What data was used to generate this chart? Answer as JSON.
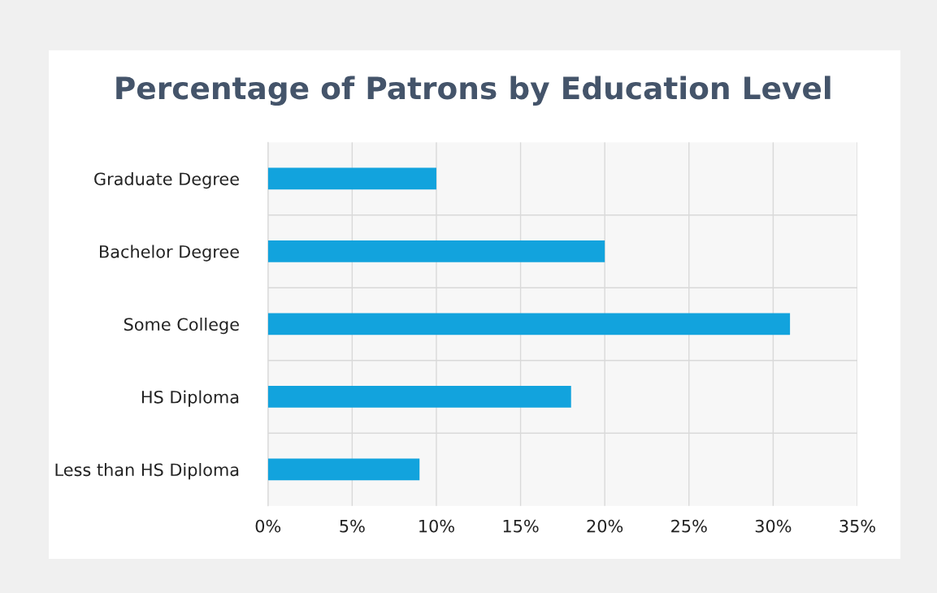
{
  "chart_data": {
    "type": "bar",
    "orientation": "horizontal",
    "title": "Percentage of Patrons by Education Level",
    "categories": [
      "Graduate Degree",
      "Bachelor Degree",
      "Some College",
      "HS Diploma",
      "Less than HS Diploma"
    ],
    "values": [
      10,
      20,
      31,
      18,
      9
    ],
    "color": "#12a3dd",
    "xlim": [
      0,
      35
    ],
    "xticks": [
      {
        "value": 0,
        "label": "0%"
      },
      {
        "value": 5,
        "label": "5%"
      },
      {
        "value": 10,
        "label": "10%"
      },
      {
        "value": 15,
        "label": "15%"
      },
      {
        "value": 20,
        "label": "20%"
      },
      {
        "value": 25,
        "label": "25%"
      },
      {
        "value": 30,
        "label": "30%"
      },
      {
        "value": 35,
        "label": "35%"
      }
    ],
    "grid": true
  }
}
